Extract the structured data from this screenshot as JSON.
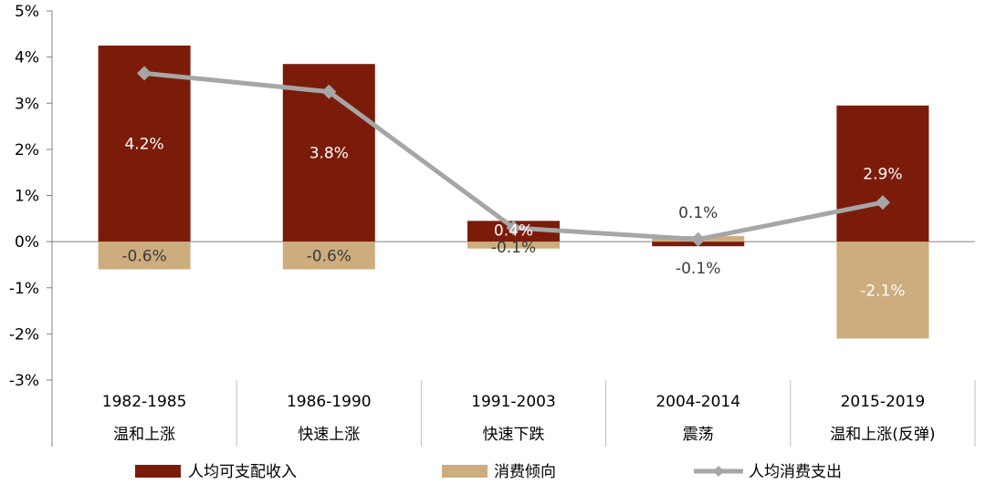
{
  "chart_data": {
    "type": "bar",
    "categories": [
      {
        "period": "1982-1985",
        "phase": "温和上涨"
      },
      {
        "period": "1986-1990",
        "phase": "快速上涨"
      },
      {
        "period": "1991-2003",
        "phase": "快速下跌"
      },
      {
        "period": "2004-2014",
        "phase": "震荡"
      },
      {
        "period": "2015-2019",
        "phase": "温和上涨(反弹)"
      }
    ],
    "series": [
      {
        "name": "人均可支配收入",
        "kind": "bar",
        "color": "#7B1C0B",
        "values": [
          4.25,
          3.85,
          0.45,
          -0.1,
          2.95
        ],
        "labels": [
          "4.2%",
          "3.8%",
          "0.4%",
          "-0.1%",
          "2.9%"
        ]
      },
      {
        "name": "消费倾向",
        "kind": "bar",
        "color": "#CDAD7D",
        "values": [
          -0.6,
          -0.6,
          -0.15,
          0.12,
          -2.1
        ],
        "labels": [
          "-0.6%",
          "-0.6%",
          "-0.1%",
          "0.1%",
          "-2.1%"
        ]
      },
      {
        "name": "人均消费支出",
        "kind": "line",
        "color": "#A6A6A6",
        "values": [
          3.65,
          3.25,
          0.3,
          0.05,
          0.85
        ]
      }
    ],
    "ylim": [
      -3,
      5
    ],
    "yticks": [
      "-3%",
      "-2%",
      "-1%",
      "0%",
      "1%",
      "2%",
      "3%",
      "4%",
      "5%"
    ],
    "ytick_values": [
      -3,
      -2,
      -1,
      0,
      1,
      2,
      3,
      4,
      5
    ],
    "legend_position": "bottom",
    "grid": false
  }
}
